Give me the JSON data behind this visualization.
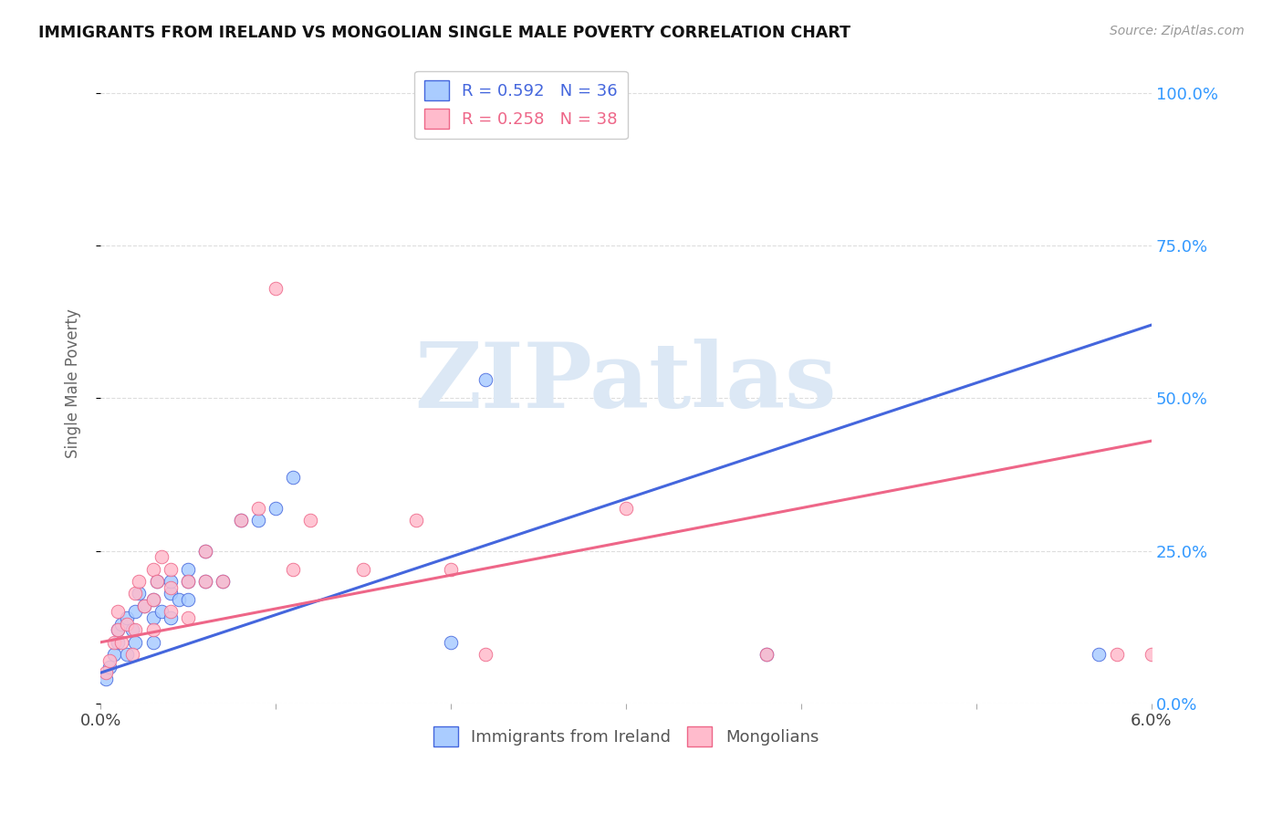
{
  "title": "IMMIGRANTS FROM IRELAND VS MONGOLIAN SINGLE MALE POVERTY CORRELATION CHART",
  "source": "Source: ZipAtlas.com",
  "ylabel": "Single Male Poverty",
  "ytick_labels": [
    "0.0%",
    "25.0%",
    "50.0%",
    "75.0%",
    "100.0%"
  ],
  "ytick_values": [
    0.0,
    0.25,
    0.5,
    0.75,
    1.0
  ],
  "xlim": [
    0.0,
    0.06
  ],
  "ylim": [
    0.0,
    1.05
  ],
  "blue_color": "#aaccff",
  "pink_color": "#ffbbcc",
  "blue_line_color": "#4466dd",
  "pink_line_color": "#ee6688",
  "blue_intercept": 0.05,
  "blue_slope": 9.5,
  "pink_intercept": 0.1,
  "pink_slope": 5.5,
  "blue_points_x": [
    0.0003,
    0.0005,
    0.0008,
    0.001,
    0.001,
    0.0012,
    0.0015,
    0.0015,
    0.0018,
    0.002,
    0.002,
    0.0022,
    0.0025,
    0.003,
    0.003,
    0.003,
    0.0032,
    0.0035,
    0.004,
    0.004,
    0.004,
    0.0045,
    0.005,
    0.005,
    0.005,
    0.006,
    0.006,
    0.007,
    0.008,
    0.009,
    0.01,
    0.011,
    0.02,
    0.022,
    0.038,
    0.057
  ],
  "blue_points_y": [
    0.04,
    0.06,
    0.08,
    0.1,
    0.12,
    0.13,
    0.08,
    0.14,
    0.12,
    0.1,
    0.15,
    0.18,
    0.16,
    0.1,
    0.14,
    0.17,
    0.2,
    0.15,
    0.14,
    0.18,
    0.2,
    0.17,
    0.2,
    0.17,
    0.22,
    0.2,
    0.25,
    0.2,
    0.3,
    0.3,
    0.32,
    0.37,
    0.1,
    0.53,
    0.08,
    0.08
  ],
  "pink_points_x": [
    0.0003,
    0.0005,
    0.0008,
    0.001,
    0.001,
    0.0012,
    0.0015,
    0.0018,
    0.002,
    0.002,
    0.0022,
    0.0025,
    0.003,
    0.003,
    0.003,
    0.0032,
    0.0035,
    0.004,
    0.004,
    0.004,
    0.005,
    0.005,
    0.006,
    0.006,
    0.007,
    0.008,
    0.009,
    0.01,
    0.011,
    0.012,
    0.015,
    0.018,
    0.02,
    0.022,
    0.03,
    0.038,
    0.058,
    0.06
  ],
  "pink_points_y": [
    0.05,
    0.07,
    0.1,
    0.12,
    0.15,
    0.1,
    0.13,
    0.08,
    0.12,
    0.18,
    0.2,
    0.16,
    0.12,
    0.17,
    0.22,
    0.2,
    0.24,
    0.15,
    0.19,
    0.22,
    0.14,
    0.2,
    0.2,
    0.25,
    0.2,
    0.3,
    0.32,
    0.68,
    0.22,
    0.3,
    0.22,
    0.3,
    0.22,
    0.08,
    0.32,
    0.08,
    0.08,
    0.08
  ],
  "background_color": "#ffffff",
  "watermark_text": "ZIPatlas",
  "watermark_color": "#dce8f5",
  "watermark_alpha": 1.0,
  "grid_color": "#dddddd",
  "grid_linestyle": "--",
  "legend1_label1": "R = 0.592",
  "legend1_n1": "N = 36",
  "legend1_label2": "R = 0.258",
  "legend1_n2": "N = 38",
  "legend2_label1": "Immigrants from Ireland",
  "legend2_label2": "Mongolians"
}
